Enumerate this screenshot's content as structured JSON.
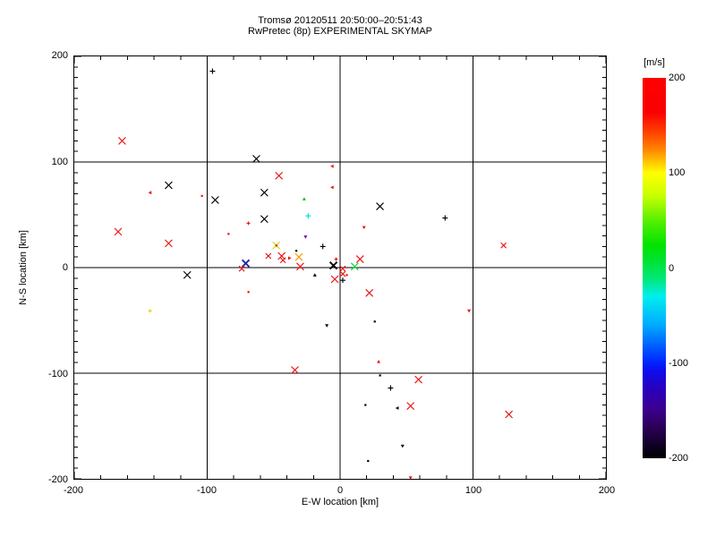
{
  "title": {
    "line1": "Tromsø 20120511 20:50:00–20:51:43",
    "line2": "RwPretec (8p) EXPERIMENTAL SKYMAP"
  },
  "colorbar": {
    "label": "[m/s]",
    "ticks": [
      200,
      100,
      0,
      -100,
      -200
    ],
    "gradient_stops": [
      {
        "at": 0.0,
        "color": "#ff0000"
      },
      {
        "at": 0.09,
        "color": "#fa0000"
      },
      {
        "at": 0.14,
        "color": "#ff3c00"
      },
      {
        "at": 0.19,
        "color": "#ff8800"
      },
      {
        "at": 0.25,
        "color": "#ffff00"
      },
      {
        "at": 0.31,
        "color": "#c8ff00"
      },
      {
        "at": 0.38,
        "color": "#50ee00"
      },
      {
        "at": 0.44,
        "color": "#00e400"
      },
      {
        "at": 0.48,
        "color": "#00e232"
      },
      {
        "at": 0.53,
        "color": "#00e87d"
      },
      {
        "at": 0.575,
        "color": "#00eeee"
      },
      {
        "at": 0.65,
        "color": "#00aaff"
      },
      {
        "at": 0.7,
        "color": "#0064ff"
      },
      {
        "at": 0.745,
        "color": "#0028ff"
      },
      {
        "at": 0.77,
        "color": "#0d0cee"
      },
      {
        "at": 0.82,
        "color": "#2b00bb"
      },
      {
        "at": 0.87,
        "color": "#3c0090"
      },
      {
        "at": 0.92,
        "color": "#2b0055"
      },
      {
        "at": 0.97,
        "color": "#0d0020"
      },
      {
        "at": 1.0,
        "color": "#000000"
      }
    ]
  },
  "chart_data": {
    "type": "scatter",
    "title": "Tromsø 20120511 20:50:00–20:51:43 / RwPretec (8p) EXPERIMENTAL SKYMAP",
    "xlabel": "E-W location [km]",
    "ylabel": "N-S location [km]",
    "color_scale_label": "[m/s]",
    "color_scale_range": [
      -200,
      200
    ],
    "axes": {
      "xlim": [
        -200,
        200
      ],
      "ylim": [
        -200,
        200
      ],
      "x_ticks": [
        -200,
        -100,
        0,
        100,
        200
      ],
      "y_ticks": [
        -200,
        -100,
        0,
        100,
        200
      ],
      "x_major_step": 100,
      "y_major_step": 100,
      "x_minor_step": 20,
      "y_minor_step": 10,
      "grid_lines": [
        -100,
        0,
        100
      ],
      "grid": true
    },
    "points": [
      {
        "x": -96,
        "y": 186,
        "color": "#000000",
        "marker": "plus",
        "size": 3
      },
      {
        "x": -164,
        "y": 120,
        "color": "#ee1010",
        "marker": "x",
        "size": 4
      },
      {
        "x": -143,
        "y": 71,
        "color": "#ee1010",
        "marker": "tri-l",
        "size": 2
      },
      {
        "x": -129,
        "y": 78,
        "color": "#000000",
        "marker": "x",
        "size": 4
      },
      {
        "x": -104,
        "y": 68,
        "color": "#ee1010",
        "marker": "dot",
        "size": 1
      },
      {
        "x": -94,
        "y": 64,
        "color": "#000000",
        "marker": "x",
        "size": 4
      },
      {
        "x": -69,
        "y": 42,
        "color": "#ee1010",
        "marker": "plus",
        "size": 2
      },
      {
        "x": -84,
        "y": 32,
        "color": "#ee1010",
        "marker": "dot",
        "size": 1
      },
      {
        "x": -167,
        "y": 34,
        "color": "#ee1010",
        "marker": "x",
        "size": 4
      },
      {
        "x": -129,
        "y": 23,
        "color": "#ee1010",
        "marker": "x",
        "size": 4
      },
      {
        "x": -63,
        "y": 103,
        "color": "#000000",
        "marker": "x",
        "size": 4
      },
      {
        "x": -46,
        "y": 87,
        "color": "#ee1010",
        "marker": "x",
        "size": 4
      },
      {
        "x": -57,
        "y": 71,
        "color": "#000000",
        "marker": "x",
        "size": 4
      },
      {
        "x": -6,
        "y": 96,
        "color": "#ee1010",
        "marker": "tri-l",
        "size": 2
      },
      {
        "x": -6,
        "y": 76,
        "color": "#ee1010",
        "marker": "tri-l",
        "size": 2
      },
      {
        "x": -27,
        "y": 65,
        "color": "#00c814",
        "marker": "tri-u",
        "size": 2
      },
      {
        "x": 30,
        "y": 58,
        "color": "#000000",
        "marker": "x",
        "size": 4
      },
      {
        "x": -57,
        "y": 46,
        "color": "#000000",
        "marker": "x",
        "size": 4
      },
      {
        "x": -24,
        "y": 49,
        "color": "#00dce0",
        "marker": "plus",
        "size": 3
      },
      {
        "x": 18,
        "y": 38,
        "color": "#ee1010",
        "marker": "tri-d",
        "size": 2
      },
      {
        "x": -26,
        "y": 29,
        "color": "#7a00b4",
        "marker": "tri-d",
        "size": 2
      },
      {
        "x": -13,
        "y": 20,
        "color": "#000000",
        "marker": "plus",
        "size": 3
      },
      {
        "x": -48,
        "y": 21,
        "color": "#c8e000",
        "marker": "x",
        "size": 4
      },
      {
        "x": -48,
        "y": 21,
        "color": "#ee1010",
        "marker": "dot",
        "size": 1
      },
      {
        "x": -33,
        "y": 16,
        "color": "#000000",
        "marker": "dot",
        "size": 1
      },
      {
        "x": -31,
        "y": 10,
        "color": "#ff9500",
        "marker": "x",
        "size": 4
      },
      {
        "x": -30,
        "y": 1,
        "color": "#ee1010",
        "marker": "x",
        "size": 4
      },
      {
        "x": -54,
        "y": 11,
        "color": "#ee1010",
        "marker": "x",
        "size": 3
      },
      {
        "x": -44,
        "y": 11,
        "color": "#ee1010",
        "marker": "x",
        "size": 4
      },
      {
        "x": -43,
        "y": 7,
        "color": "#ee1010",
        "marker": "x",
        "size": 3
      },
      {
        "x": -38,
        "y": 9,
        "color": "#ee1010",
        "marker": "tri-r",
        "size": 2
      },
      {
        "x": -71,
        "y": 4,
        "color": "#2222aa",
        "marker": "xbold",
        "size": 4
      },
      {
        "x": -74,
        "y": -1,
        "color": "#ee1010",
        "marker": "x",
        "size": 3
      },
      {
        "x": -5,
        "y": 2,
        "color": "#000000",
        "marker": "xbold",
        "size": 4
      },
      {
        "x": -3,
        "y": 8,
        "color": "#ee1010",
        "marker": "plus",
        "size": 2
      },
      {
        "x": 2,
        "y": -1,
        "color": "#ee1010",
        "marker": "x",
        "size": 3
      },
      {
        "x": 2,
        "y": -6,
        "color": "#ee1010",
        "marker": "x",
        "size": 3
      },
      {
        "x": 5,
        "y": -7,
        "color": "#ee1010",
        "marker": "dot",
        "size": 1
      },
      {
        "x": 11,
        "y": 1,
        "color": "#00d93c",
        "marker": "x",
        "size": 4
      },
      {
        "x": 15,
        "y": 8,
        "color": "#ee1010",
        "marker": "x",
        "size": 4
      },
      {
        "x": -19,
        "y": -7,
        "color": "#000000",
        "marker": "tri-u",
        "size": 2
      },
      {
        "x": -4,
        "y": -11,
        "color": "#ee1010",
        "marker": "x",
        "size": 4
      },
      {
        "x": 2,
        "y": -12,
        "color": "#000000",
        "marker": "plus",
        "size": 3
      },
      {
        "x": 79,
        "y": 47,
        "color": "#000000",
        "marker": "plus",
        "size": 3
      },
      {
        "x": 123,
        "y": 21,
        "color": "#ee1010",
        "marker": "x",
        "size": 3
      },
      {
        "x": -115,
        "y": -7,
        "color": "#000000",
        "marker": "x",
        "size": 4
      },
      {
        "x": -69,
        "y": -23,
        "color": "#ee1010",
        "marker": "dot",
        "size": 1
      },
      {
        "x": -143,
        "y": -41,
        "color": "#e8d800",
        "marker": "plus",
        "size": 2
      },
      {
        "x": 22,
        "y": -24,
        "color": "#ee1010",
        "marker": "x",
        "size": 4
      },
      {
        "x": 26,
        "y": -51,
        "color": "#000000",
        "marker": "dot",
        "size": 1
      },
      {
        "x": -10,
        "y": -55,
        "color": "#000000",
        "marker": "tri-d",
        "size": 2
      },
      {
        "x": 29,
        "y": -89,
        "color": "#ee1010",
        "marker": "tri-u",
        "size": 2
      },
      {
        "x": -34,
        "y": -97,
        "color": "#ee1010",
        "marker": "x",
        "size": 4
      },
      {
        "x": 30,
        "y": -102,
        "color": "#000000",
        "marker": "dot",
        "size": 1
      },
      {
        "x": 59,
        "y": -106,
        "color": "#ee1010",
        "marker": "x",
        "size": 4
      },
      {
        "x": 38,
        "y": -114,
        "color": "#000000",
        "marker": "plus",
        "size": 3
      },
      {
        "x": 19,
        "y": -130,
        "color": "#000000",
        "marker": "dot",
        "size": 1
      },
      {
        "x": 43,
        "y": -133,
        "color": "#000000",
        "marker": "tri-l",
        "size": 2
      },
      {
        "x": 53,
        "y": -131,
        "color": "#ee1010",
        "marker": "x",
        "size": 4
      },
      {
        "x": 47,
        "y": -169,
        "color": "#000000",
        "marker": "tri-d",
        "size": 2
      },
      {
        "x": 21,
        "y": -183,
        "color": "#000000",
        "marker": "dot",
        "size": 1
      },
      {
        "x": 53,
        "y": -199,
        "color": "#ee1010",
        "marker": "tri-d",
        "size": 2
      },
      {
        "x": 97,
        "y": -41,
        "color": "#ee1010",
        "marker": "tri-d",
        "size": 2
      },
      {
        "x": 127,
        "y": -139,
        "color": "#ee1010",
        "marker": "x",
        "size": 4
      }
    ]
  }
}
